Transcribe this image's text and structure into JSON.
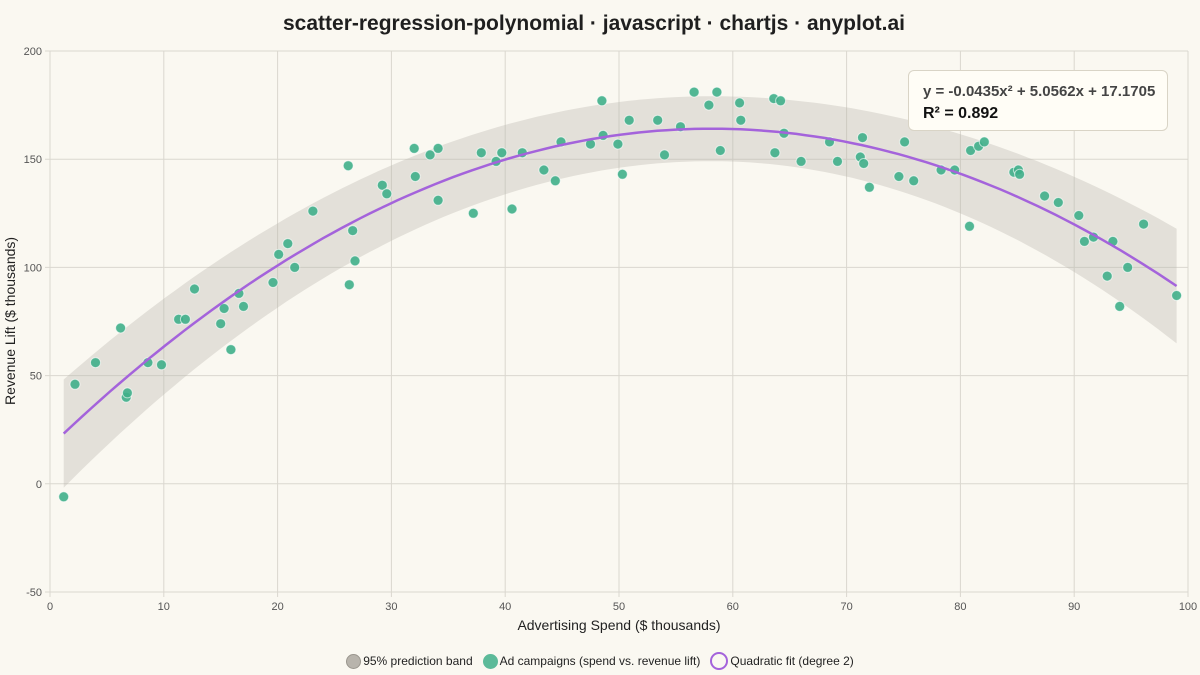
{
  "chart_data": {
    "type": "scatter",
    "title": "scatter-regression-polynomial · javascript · chartjs · anyplot.ai",
    "xlabel": "Advertising Spend ($ thousands)",
    "ylabel": "Revenue Lift ($ thousands)",
    "xlim": [
      0,
      100
    ],
    "ylim": [
      -50,
      200
    ],
    "x_ticks": [
      0,
      10,
      20,
      30,
      40,
      50,
      60,
      70,
      80,
      90,
      100
    ],
    "y_ticks": [
      -50,
      0,
      50,
      100,
      150,
      200
    ],
    "grid": true,
    "legend_position": "bottom",
    "series": [
      {
        "name": "95% prediction band",
        "kind": "band",
        "color": "#B8B4AC",
        "x_range": [
          1.2,
          99
        ],
        "half_width_start": 25,
        "half_width_end": 26.5,
        "half_width_mid": 15
      },
      {
        "name": "Ad campaigns (spend vs. revenue lift)",
        "kind": "points",
        "color": "#3FAF8A",
        "points": [
          [
            1.2,
            -6
          ],
          [
            2.2,
            46
          ],
          [
            4,
            56
          ],
          [
            6.2,
            72
          ],
          [
            6.7,
            40
          ],
          [
            6.8,
            42
          ],
          [
            8.6,
            56
          ],
          [
            9.8,
            55
          ],
          [
            11.3,
            76
          ],
          [
            11.9,
            76
          ],
          [
            12.7,
            90
          ],
          [
            15,
            74
          ],
          [
            15.3,
            81
          ],
          [
            15.9,
            62
          ],
          [
            16.6,
            88
          ],
          [
            17,
            82
          ],
          [
            19.6,
            93
          ],
          [
            20.1,
            106
          ],
          [
            20.9,
            111
          ],
          [
            21.5,
            100
          ],
          [
            23.1,
            126
          ],
          [
            26.2,
            147
          ],
          [
            26.3,
            92
          ],
          [
            26.6,
            117
          ],
          [
            26.8,
            103
          ],
          [
            29.2,
            138
          ],
          [
            29.6,
            134
          ],
          [
            32,
            155
          ],
          [
            32.1,
            142
          ],
          [
            33.4,
            152
          ],
          [
            34.1,
            155
          ],
          [
            34.1,
            131
          ],
          [
            37.2,
            125
          ],
          [
            37.9,
            153
          ],
          [
            39.2,
            149
          ],
          [
            39.7,
            153
          ],
          [
            40.6,
            127
          ],
          [
            41.5,
            153
          ],
          [
            43.4,
            145
          ],
          [
            44.4,
            140
          ],
          [
            44.9,
            158
          ],
          [
            47.5,
            157
          ],
          [
            48.5,
            177
          ],
          [
            48.6,
            161
          ],
          [
            49.9,
            157
          ],
          [
            50.3,
            143
          ],
          [
            50.9,
            168
          ],
          [
            53.4,
            168
          ],
          [
            54,
            152
          ],
          [
            55.4,
            165
          ],
          [
            56.6,
            181
          ],
          [
            57.9,
            175
          ],
          [
            58.6,
            181
          ],
          [
            58.9,
            154
          ],
          [
            60.6,
            176
          ],
          [
            60.7,
            168
          ],
          [
            63.6,
            178
          ],
          [
            63.7,
            153
          ],
          [
            64.2,
            177
          ],
          [
            64.5,
            162
          ],
          [
            66,
            149
          ],
          [
            68.5,
            158
          ],
          [
            69.2,
            149
          ],
          [
            71.2,
            151
          ],
          [
            71.4,
            160
          ],
          [
            71.5,
            148
          ],
          [
            72,
            137
          ],
          [
            74.6,
            142
          ],
          [
            75.1,
            158
          ],
          [
            75.9,
            140
          ],
          [
            78.3,
            145
          ],
          [
            79.5,
            145
          ],
          [
            80.8,
            119
          ],
          [
            80.9,
            154
          ],
          [
            81.6,
            156
          ],
          [
            82.1,
            158
          ],
          [
            84.7,
            144
          ],
          [
            85.1,
            145
          ],
          [
            85.2,
            143
          ],
          [
            87.4,
            133
          ],
          [
            88.6,
            130
          ],
          [
            90.4,
            124
          ],
          [
            90.9,
            112
          ],
          [
            91.7,
            114
          ],
          [
            92.9,
            96
          ],
          [
            93.4,
            112
          ],
          [
            94,
            82
          ],
          [
            94.7,
            100
          ],
          [
            96.1,
            120
          ],
          [
            99,
            87
          ]
        ]
      },
      {
        "name": "Quadratic fit (degree 2)",
        "kind": "curve",
        "color": "#A463DB",
        "equation": {
          "a": -0.0435,
          "b": 5.0562,
          "c": 17.1705
        },
        "x_range": [
          1.2,
          99
        ]
      }
    ],
    "annotation": {
      "equation": "y = -0.0435x² + 5.0562x + 17.1705",
      "r2": "R² = 0.892"
    }
  }
}
